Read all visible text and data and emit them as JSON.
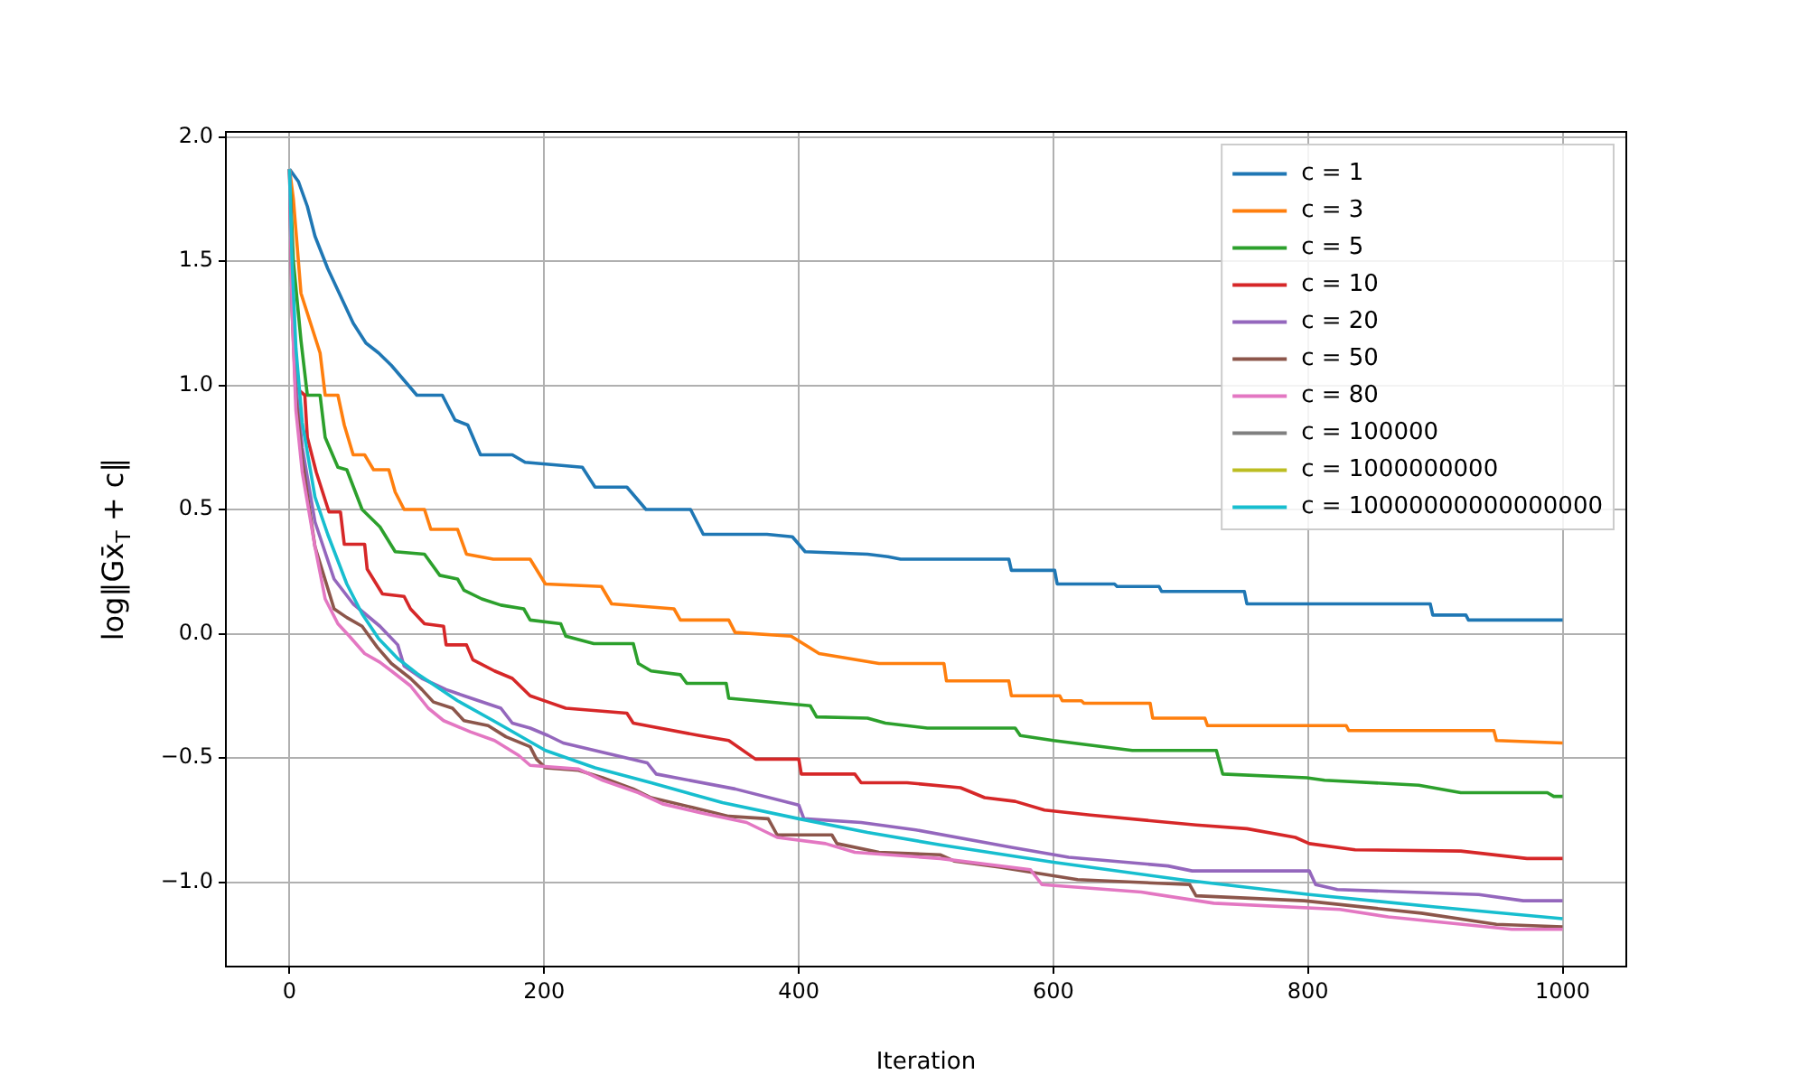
{
  "chart_data": {
    "type": "line",
    "xlabel": "Iteration",
    "ylabel": "log‖Gx̄$_{T}$ + c‖",
    "xlim": [
      -50,
      1050
    ],
    "xticks": [
      0,
      200,
      400,
      600,
      800,
      1000
    ],
    "ylim": [
      -1.34,
      2.02
    ],
    "yticks": [
      {
        "value": -1,
        "label": "−1.0"
      },
      {
        "value": -0.5,
        "label": "−0.5"
      },
      {
        "value": 0,
        "label": "0.0"
      },
      {
        "value": 0.5,
        "label": "0.5"
      },
      {
        "value": 1,
        "label": "1.0"
      },
      {
        "value": 1.5,
        "label": "1.5"
      },
      {
        "value": 2,
        "label": "2.0"
      }
    ],
    "grid": true,
    "legend": "top right",
    "series": [
      {
        "name": "c = 1",
        "color": "#1f77b4",
        "x": [
          0,
          7,
          14,
          20,
          30,
          40,
          50,
          60,
          70,
          80,
          90,
          100,
          120,
          130,
          140,
          150,
          175,
          185,
          230,
          240,
          265,
          280,
          315,
          325,
          375,
          395,
          405,
          454,
          470,
          480,
          565,
          567,
          601,
          603,
          648,
          650,
          683,
          685,
          750,
          752,
          896,
          898,
          924,
          926,
          1000
        ],
        "values": [
          1.87,
          1.82,
          1.72,
          1.6,
          1.47,
          1.36,
          1.25,
          1.17,
          1.13,
          1.08,
          1.02,
          0.96,
          0.96,
          0.86,
          0.84,
          0.72,
          0.72,
          0.69,
          0.67,
          0.59,
          0.59,
          0.5,
          0.5,
          0.4,
          0.4,
          0.39,
          0.33,
          0.32,
          0.31,
          0.3,
          0.3,
          0.255,
          0.255,
          0.2,
          0.2,
          0.19,
          0.19,
          0.17,
          0.17,
          0.12,
          0.12,
          0.075,
          0.075,
          0.055,
          0.055
        ]
      },
      {
        "name": "c = 3",
        "color": "#ff7f0e",
        "x": [
          0,
          3,
          9,
          24,
          28,
          38,
          43,
          50,
          59,
          66,
          78,
          83,
          90,
          106,
          111,
          132,
          139,
          160,
          189,
          201,
          245,
          253,
          302,
          307,
          345,
          350,
          394,
          416,
          463,
          514,
          516,
          565,
          567,
          605,
          607,
          622,
          624,
          676,
          678,
          719,
          721,
          830,
          832,
          946,
          948,
          1000
        ],
        "values": [
          1.87,
          1.75,
          1.37,
          1.13,
          0.96,
          0.96,
          0.84,
          0.72,
          0.72,
          0.66,
          0.66,
          0.57,
          0.5,
          0.5,
          0.42,
          0.42,
          0.32,
          0.3,
          0.3,
          0.2,
          0.19,
          0.12,
          0.1,
          0.055,
          0.055,
          0.005,
          -0.01,
          -0.08,
          -0.12,
          -0.12,
          -0.19,
          -0.19,
          -0.25,
          -0.25,
          -0.27,
          -0.27,
          -0.28,
          -0.28,
          -0.34,
          -0.34,
          -0.37,
          -0.37,
          -0.39,
          -0.39,
          -0.43,
          -0.44
        ]
      },
      {
        "name": "c = 5",
        "color": "#2ca02c",
        "x": [
          0,
          3,
          9,
          14,
          24,
          28,
          38,
          45,
          57,
          71,
          83,
          106,
          118,
          132,
          137,
          151,
          166,
          184,
          189,
          213,
          217,
          239,
          270,
          274,
          284,
          307,
          312,
          343,
          345,
          409,
          414,
          454,
          468,
          501,
          570,
          574,
          600,
          662,
          728,
          733,
          799,
          813,
          887,
          920,
          988,
          993,
          1000
        ],
        "values": [
          1.87,
          1.5,
          1.18,
          0.96,
          0.96,
          0.79,
          0.67,
          0.66,
          0.5,
          0.43,
          0.33,
          0.32,
          0.235,
          0.22,
          0.175,
          0.14,
          0.115,
          0.1,
          0.055,
          0.04,
          -0.01,
          -0.04,
          -0.04,
          -0.12,
          -0.15,
          -0.165,
          -0.2,
          -0.2,
          -0.26,
          -0.29,
          -0.335,
          -0.34,
          -0.36,
          -0.38,
          -0.38,
          -0.41,
          -0.43,
          -0.47,
          -0.47,
          -0.565,
          -0.58,
          -0.59,
          -0.61,
          -0.64,
          -0.64,
          -0.655,
          -0.655
        ]
      },
      {
        "name": "c = 10",
        "color": "#d62728",
        "x": [
          0,
          2,
          5,
          12,
          14,
          21,
          31,
          40,
          43,
          59,
          61,
          73,
          90,
          95,
          106,
          121,
          123,
          139,
          144,
          161,
          175,
          189,
          203,
          217,
          265,
          270,
          322,
          345,
          366,
          400,
          402,
          444,
          449,
          485,
          527,
          546,
          570,
          593,
          629,
          712,
          752,
          790,
          801,
          837,
          920,
          972,
          1000
        ],
        "values": [
          1.87,
          1.5,
          0.99,
          0.96,
          0.79,
          0.65,
          0.49,
          0.49,
          0.36,
          0.36,
          0.26,
          0.16,
          0.15,
          0.1,
          0.04,
          0.03,
          -0.045,
          -0.045,
          -0.105,
          -0.15,
          -0.18,
          -0.25,
          -0.275,
          -0.3,
          -0.32,
          -0.36,
          -0.41,
          -0.43,
          -0.505,
          -0.505,
          -0.565,
          -0.565,
          -0.6,
          -0.6,
          -0.62,
          -0.66,
          -0.675,
          -0.71,
          -0.73,
          -0.77,
          -0.785,
          -0.82,
          -0.845,
          -0.87,
          -0.875,
          -0.905,
          -0.905
        ]
      },
      {
        "name": "c = 20",
        "color": "#9467bd",
        "x": [
          0,
          2,
          5,
          10,
          20,
          35,
          50,
          71,
          85,
          90,
          104,
          123,
          137,
          166,
          175,
          189,
          203,
          215,
          281,
          288,
          350,
          400,
          404,
          449,
          492,
          567,
          612,
          690,
          709,
          801,
          806,
          823,
          934,
          969,
          1000
        ],
        "values": [
          1.87,
          1.35,
          1.0,
          0.75,
          0.45,
          0.22,
          0.12,
          0.03,
          -0.045,
          -0.13,
          -0.18,
          -0.225,
          -0.25,
          -0.3,
          -0.36,
          -0.38,
          -0.41,
          -0.44,
          -0.52,
          -0.565,
          -0.625,
          -0.69,
          -0.745,
          -0.76,
          -0.79,
          -0.86,
          -0.9,
          -0.935,
          -0.955,
          -0.955,
          -1.01,
          -1.03,
          -1.05,
          -1.075,
          -1.075
        ]
      },
      {
        "name": "c = 50",
        "color": "#8c564b",
        "x": [
          0,
          2,
          5,
          10,
          20,
          35,
          45,
          57,
          64,
          69,
          80,
          95,
          104,
          113,
          128,
          137,
          156,
          170,
          189,
          194,
          201,
          227,
          246,
          270,
          284,
          317,
          345,
          376,
          383,
          426,
          430,
          463,
          511,
          522,
          558,
          619,
          707,
          712,
          797,
          861,
          889,
          948,
          1000
        ],
        "values": [
          1.87,
          1.3,
          0.95,
          0.7,
          0.35,
          0.1,
          0.065,
          0.03,
          -0.02,
          -0.055,
          -0.12,
          -0.18,
          -0.225,
          -0.275,
          -0.3,
          -0.35,
          -0.37,
          -0.415,
          -0.455,
          -0.505,
          -0.54,
          -0.55,
          -0.58,
          -0.625,
          -0.66,
          -0.7,
          -0.735,
          -0.745,
          -0.81,
          -0.81,
          -0.845,
          -0.88,
          -0.89,
          -0.915,
          -0.94,
          -0.99,
          -1.01,
          -1.055,
          -1.075,
          -1.11,
          -1.125,
          -1.17,
          -1.18
        ]
      },
      {
        "name": "c = 80",
        "color": "#e377c2",
        "x": [
          0,
          2,
          5,
          10,
          20,
          28,
          38,
          47,
          59,
          71,
          80,
          95,
          109,
          121,
          142,
          161,
          180,
          189,
          227,
          246,
          274,
          293,
          322,
          359,
          383,
          421,
          444,
          511,
          582,
          591,
          669,
          726,
          825,
          863,
          960,
          1000
        ],
        "values": [
          1.87,
          1.3,
          0.9,
          0.65,
          0.35,
          0.14,
          0.04,
          -0.01,
          -0.08,
          -0.115,
          -0.15,
          -0.21,
          -0.3,
          -0.35,
          -0.395,
          -0.43,
          -0.49,
          -0.53,
          -0.545,
          -0.59,
          -0.64,
          -0.685,
          -0.72,
          -0.76,
          -0.82,
          -0.845,
          -0.88,
          -0.905,
          -0.95,
          -1.01,
          -1.04,
          -1.085,
          -1.11,
          -1.14,
          -1.19,
          -1.19
        ]
      },
      {
        "name": "c = 100000",
        "color": "#7f7f7f",
        "values": [
          null
        ]
      },
      {
        "name": "c = 1000000000",
        "color": "#bcbd22",
        "values": [
          null
        ]
      },
      {
        "name": "c = 10000000000000000",
        "color": "#17becf",
        "x": [
          0,
          2,
          5,
          10,
          20,
          30,
          45,
          57,
          70,
          85,
          100,
          132,
          160,
          201,
          240,
          284,
          340,
          400,
          454,
          511,
          600,
          700,
          801,
          900,
          1000
        ],
        "values": [
          1.87,
          1.5,
          1.15,
          0.85,
          0.55,
          0.4,
          0.2,
          0.08,
          -0.02,
          -0.1,
          -0.16,
          -0.27,
          -0.35,
          -0.47,
          -0.54,
          -0.6,
          -0.68,
          -0.745,
          -0.8,
          -0.85,
          -0.92,
          -0.99,
          -1.05,
          -1.1,
          -1.147
        ]
      }
    ]
  }
}
